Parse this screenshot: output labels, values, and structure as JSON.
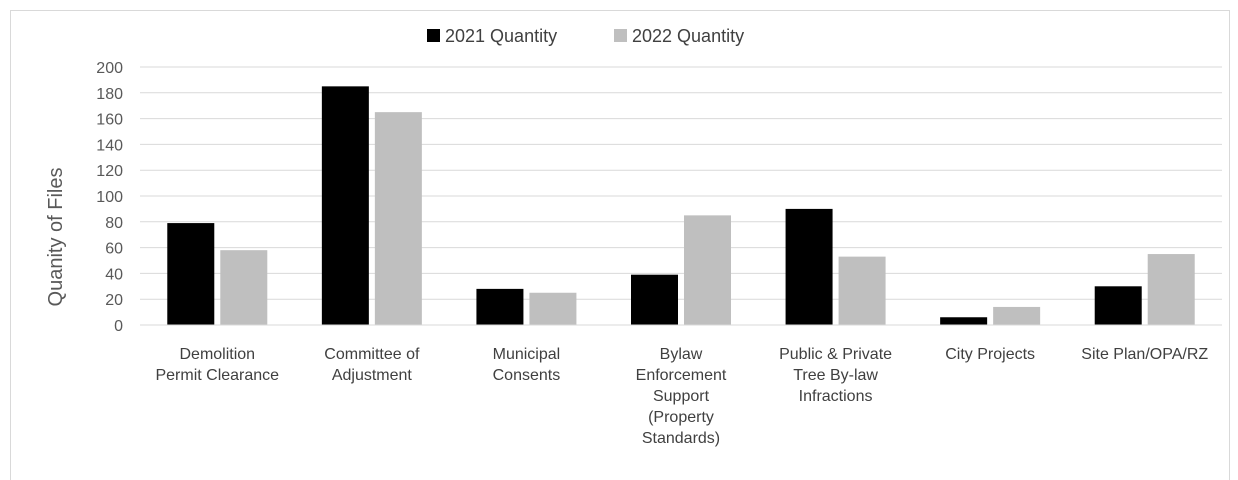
{
  "chart_data": {
    "type": "bar",
    "title": "",
    "xlabel": "",
    "ylabel": "Quanity of Files",
    "ylim": [
      0,
      200
    ],
    "yticks": [
      0,
      20,
      40,
      60,
      80,
      100,
      120,
      140,
      160,
      180,
      200
    ],
    "grid": true,
    "legend_position": "top-center",
    "categories": [
      [
        "Demolition",
        "Permit Clearance"
      ],
      [
        "Committee of",
        "Adjustment"
      ],
      [
        "Municipal",
        "Consents"
      ],
      [
        "Bylaw",
        "Enforcement",
        "Support",
        "(Property",
        "Standards)"
      ],
      [
        "Public & Private",
        "Tree By-law",
        "Infractions"
      ],
      [
        "City Projects"
      ],
      [
        "Site Plan/OPA/RZ"
      ]
    ],
    "series": [
      {
        "name": "2021 Quantity",
        "color": "#000000",
        "values": [
          79,
          185,
          28,
          39,
          90,
          6,
          30
        ]
      },
      {
        "name": "2022 Quantity",
        "color": "#bfbfbf",
        "values": [
          58,
          165,
          25,
          85,
          53,
          14,
          55
        ]
      }
    ]
  }
}
